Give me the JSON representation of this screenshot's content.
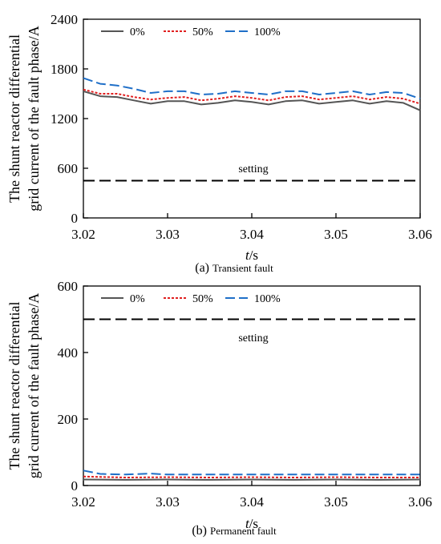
{
  "chart_data": [
    {
      "type": "line",
      "caption_label": "(a)",
      "caption_text": "Transient fault",
      "ylabel_line1": "The shunt reactor differential",
      "ylabel_line2": "grid current of the fault phase/A",
      "xlabel_var": "t",
      "xlabel_unit": "/s",
      "xlim": [
        3.02,
        3.06
      ],
      "ylim": [
        0,
        2400
      ],
      "xticks": [
        "3.02",
        "3.03",
        "3.04",
        "3.05",
        "3.06"
      ],
      "yticks": [
        "0",
        "600",
        "1200",
        "1800",
        "2400"
      ],
      "legend": [
        "0%",
        "50%",
        "100%"
      ],
      "setting_label": "setting",
      "setting_value": 450,
      "series": [
        {
          "name": "0%",
          "color": "#555555",
          "style": "solid",
          "x": [
            3.02,
            3.022,
            3.024,
            3.026,
            3.028,
            3.03,
            3.032,
            3.034,
            3.036,
            3.038,
            3.04,
            3.042,
            3.044,
            3.046,
            3.048,
            3.05,
            3.052,
            3.054,
            3.056,
            3.058,
            3.06
          ],
          "values": [
            1530,
            1470,
            1460,
            1420,
            1380,
            1410,
            1410,
            1370,
            1390,
            1420,
            1400,
            1370,
            1410,
            1420,
            1380,
            1400,
            1420,
            1380,
            1410,
            1390,
            1300
          ]
        },
        {
          "name": "50%",
          "color": "#e02020",
          "style": "dotted",
          "x": [
            3.02,
            3.022,
            3.024,
            3.026,
            3.028,
            3.03,
            3.032,
            3.034,
            3.036,
            3.038,
            3.04,
            3.042,
            3.044,
            3.046,
            3.048,
            3.05,
            3.052,
            3.054,
            3.056,
            3.058,
            3.06
          ],
          "values": [
            1550,
            1500,
            1500,
            1460,
            1430,
            1450,
            1460,
            1420,
            1440,
            1470,
            1450,
            1420,
            1460,
            1470,
            1430,
            1450,
            1470,
            1430,
            1460,
            1440,
            1380
          ]
        },
        {
          "name": "100%",
          "color": "#1f6fc8",
          "style": "dashed",
          "x": [
            3.02,
            3.022,
            3.024,
            3.026,
            3.028,
            3.03,
            3.032,
            3.034,
            3.036,
            3.038,
            3.04,
            3.042,
            3.044,
            3.046,
            3.048,
            3.05,
            3.052,
            3.054,
            3.056,
            3.058,
            3.06
          ],
          "values": [
            1690,
            1620,
            1600,
            1560,
            1510,
            1530,
            1530,
            1490,
            1500,
            1530,
            1510,
            1490,
            1530,
            1530,
            1490,
            1510,
            1530,
            1490,
            1520,
            1510,
            1440
          ]
        }
      ]
    },
    {
      "type": "line",
      "caption_label": "(b)",
      "caption_text": "Permanent fault",
      "ylabel_line1": "The shunt reactor differential",
      "ylabel_line2": "grid current of the fault phase/A",
      "xlabel_var": "t",
      "xlabel_unit": "/s",
      "xlim": [
        3.02,
        3.06
      ],
      "ylim": [
        0,
        600
      ],
      "xticks": [
        "3.02",
        "3.03",
        "3.04",
        "3.05",
        "3.06"
      ],
      "yticks": [
        "0",
        "200",
        "400",
        "600"
      ],
      "legend": [
        "0%",
        "50%",
        "100%"
      ],
      "setting_label": "setting",
      "setting_value": 500,
      "series": [
        {
          "name": "0%",
          "color": "#555555",
          "style": "solid",
          "x": [
            3.02,
            3.025,
            3.03,
            3.035,
            3.04,
            3.045,
            3.05,
            3.055,
            3.06
          ],
          "values": [
            18,
            17,
            18,
            17,
            18,
            17,
            18,
            17,
            18
          ]
        },
        {
          "name": "50%",
          "color": "#e02020",
          "style": "dotted",
          "x": [
            3.02,
            3.025,
            3.03,
            3.035,
            3.04,
            3.045,
            3.05,
            3.055,
            3.06
          ],
          "values": [
            27,
            24,
            25,
            24,
            25,
            24,
            25,
            24,
            24
          ]
        },
        {
          "name": "100%",
          "color": "#1f6fc8",
          "style": "dashed",
          "x": [
            3.02,
            3.022,
            3.025,
            3.028,
            3.03,
            3.035,
            3.04,
            3.045,
            3.05,
            3.055,
            3.06
          ],
          "values": [
            45,
            35,
            33,
            36,
            33,
            33,
            33,
            33,
            33,
            33,
            33
          ]
        }
      ]
    }
  ]
}
